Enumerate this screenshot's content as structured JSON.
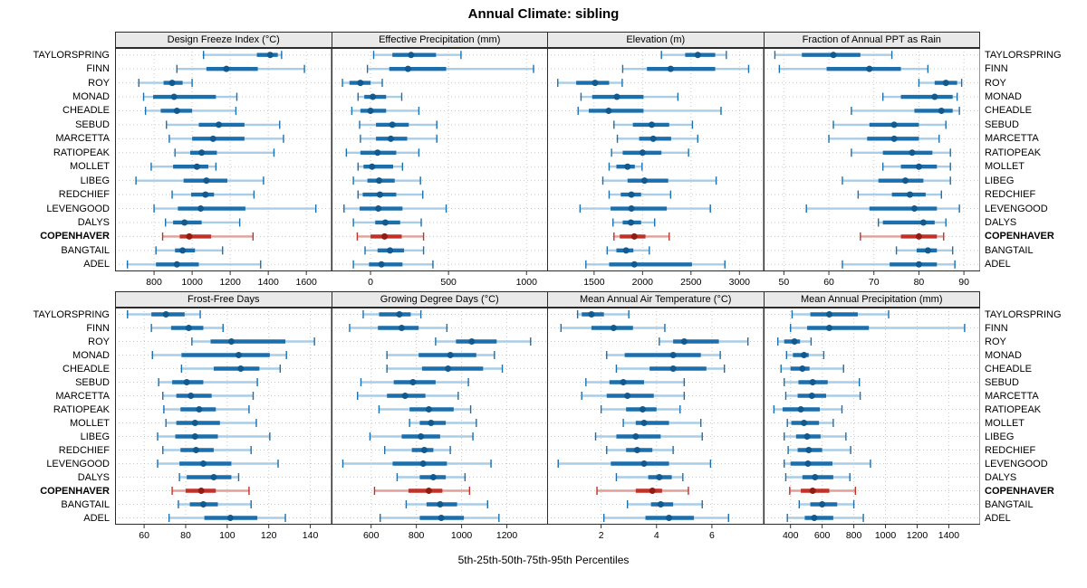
{
  "title": "Annual Climate: sibling",
  "caption": "5th-25th-50th-75th-95th Percentiles",
  "stations": [
    "TAYLORSPRING",
    "FINN",
    "ROY",
    "MONAD",
    "CHEADLE",
    "SEBUD",
    "MARCETTA",
    "RATIOPEAK",
    "MOLLET",
    "LIBEG",
    "REDCHIEF",
    "LEVENGOOD",
    "DALYS",
    "COPENHAVER",
    "BANGTAIL",
    "ADEL"
  ],
  "highlight_station": "COPENHAVER",
  "percentiles": [
    5,
    25,
    50,
    75,
    95
  ],
  "colors": {
    "series": "#1b6fad",
    "series_light": "#a9cde6",
    "series_dot": "#11598e",
    "highlight": "#c23128",
    "highlight_light": "#dfa09a",
    "highlight_dot": "#8f1d15",
    "grid": "#c8c8c8",
    "strip_bg": "#e9e9e9",
    "border": "#2b2b2b",
    "text": "#000000"
  },
  "chart_data": [
    {
      "type": "interval",
      "title": "Design Freeze Index (°C)",
      "xlim": [
        595,
        1730
      ],
      "ticks": [
        800,
        1000,
        1200,
        1400,
        1600
      ],
      "values": {
        "TAYLORSPRING": [
          1060,
          1340,
          1410,
          1450,
          1470
        ],
        "FINN": [
          920,
          1075,
          1180,
          1345,
          1590
        ],
        "ROY": [
          720,
          850,
          895,
          950,
          1000
        ],
        "MONAD": [
          745,
          795,
          905,
          1125,
          1235
        ],
        "CHEADLE": [
          755,
          835,
          920,
          1000,
          1230
        ],
        "SEBUD": [
          865,
          1035,
          1140,
          1275,
          1460
        ],
        "MARCETTA": [
          880,
          1000,
          1110,
          1275,
          1480
        ],
        "RATIOPEAK": [
          910,
          990,
          1050,
          1130,
          1430
        ],
        "MOLLET": [
          785,
          900,
          1025,
          1085,
          1125
        ],
        "LIBEG": [
          705,
          955,
          1075,
          1185,
          1375
        ],
        "REDCHIEF": [
          895,
          995,
          1070,
          1115,
          1325
        ],
        "LEVENGOOD": [
          800,
          925,
          1045,
          1280,
          1650
        ],
        "DALYS": [
          860,
          900,
          960,
          1050,
          1250
        ],
        "COPENHAVER": [
          845,
          935,
          985,
          1100,
          1320
        ],
        "BANGTAIL": [
          810,
          910,
          950,
          1015,
          1160
        ],
        "ADEL": [
          660,
          810,
          920,
          1035,
          1360
        ]
      }
    },
    {
      "type": "interval",
      "title": "Effective Precipitation (mm)",
      "xlim": [
        -250,
        1135
      ],
      "ticks": [
        0,
        500,
        1000
      ],
      "values": {
        "TAYLORSPRING": [
          20,
          140,
          260,
          420,
          580
        ],
        "FINN": [
          -20,
          120,
          240,
          485,
          1045
        ],
        "ROY": [
          -180,
          -135,
          -65,
          0,
          75
        ],
        "MONAD": [
          -80,
          -40,
          15,
          100,
          200
        ],
        "CHEADLE": [
          -120,
          -65,
          0,
          100,
          310
        ],
        "SEBUD": [
          -70,
          35,
          140,
          245,
          425
        ],
        "MARCETTA": [
          -65,
          35,
          130,
          235,
          425
        ],
        "RATIOPEAK": [
          -155,
          -65,
          45,
          165,
          310
        ],
        "MOLLET": [
          -80,
          -45,
          10,
          145,
          205
        ],
        "LIBEG": [
          -110,
          -20,
          55,
          155,
          320
        ],
        "REDCHIEF": [
          -80,
          -50,
          60,
          165,
          335
        ],
        "LEVENGOOD": [
          -170,
          -70,
          50,
          205,
          485
        ],
        "DALYS": [
          -110,
          30,
          95,
          190,
          325
        ],
        "COPENHAVER": [
          -85,
          0,
          90,
          200,
          340
        ],
        "BANGTAIL": [
          -35,
          45,
          125,
          215,
          340
        ],
        "ADEL": [
          -110,
          -10,
          70,
          205,
          400
        ]
      }
    },
    {
      "type": "interval",
      "title": "Elevation (m)",
      "xlim": [
        1015,
        3245
      ],
      "ticks": [
        1500,
        2000,
        2500,
        3000
      ],
      "values": {
        "TAYLORSPRING": [
          2195,
          2440,
          2570,
          2750,
          2865
        ],
        "FINN": [
          1795,
          2045,
          2290,
          2750,
          3095
        ],
        "ROY": [
          1125,
          1315,
          1510,
          1655,
          1790
        ],
        "MONAD": [
          1365,
          1480,
          1735,
          2010,
          2365
        ],
        "CHEADLE": [
          1335,
          1445,
          1650,
          2010,
          2810
        ],
        "SEBUD": [
          1705,
          1900,
          2095,
          2275,
          2515
        ],
        "MARCETTA": [
          1740,
          1965,
          2110,
          2295,
          2570
        ],
        "RATIOPEAK": [
          1680,
          1795,
          2000,
          2195,
          2475
        ],
        "MOLLET": [
          1655,
          1730,
          1845,
          1920,
          1995
        ],
        "LIBEG": [
          1590,
          1845,
          2020,
          2265,
          2760
        ],
        "REDCHIEF": [
          1655,
          1775,
          1885,
          1985,
          2290
        ],
        "LEVENGOOD": [
          1355,
          1670,
          1885,
          2250,
          2700
        ],
        "DALYS": [
          1695,
          1795,
          1880,
          1985,
          2125
        ],
        "COPENHAVER": [
          1705,
          1765,
          1915,
          2030,
          2275
        ],
        "BANGTAIL": [
          1635,
          1730,
          1830,
          1905,
          2070
        ],
        "ADEL": [
          1415,
          1655,
          1915,
          2510,
          2850
        ]
      }
    },
    {
      "type": "interval",
      "title": "Fraction of Annual PPT as Rain",
      "xlim": [
        45.5,
        93.5
      ],
      "ticks": [
        50,
        60,
        70,
        80,
        90
      ],
      "values": {
        "TAYLORSPRING": [
          48,
          54,
          61,
          67,
          74
        ],
        "FINN": [
          49,
          59.5,
          69,
          76,
          82
        ],
        "ROY": [
          80,
          83.5,
          86,
          88.5,
          89.5
        ],
        "MONAD": [
          72,
          76,
          83.5,
          87.5,
          88.5
        ],
        "CHEADLE": [
          65,
          79,
          85,
          87.5,
          89
        ],
        "SEBUD": [
          61,
          69,
          74.5,
          80,
          86
        ],
        "MARCETTA": [
          60,
          68.5,
          74.5,
          80,
          84.5
        ],
        "RATIOPEAK": [
          65,
          72,
          78.5,
          83,
          87
        ],
        "MOLLET": [
          72,
          76,
          80,
          84,
          87
        ],
        "LIBEG": [
          63,
          71,
          77,
          81,
          87
        ],
        "REDCHIEF": [
          66.5,
          74,
          78,
          81.5,
          85
        ],
        "LEVENGOOD": [
          55,
          69,
          79,
          84,
          89
        ],
        "DALYS": [
          71,
          72,
          81,
          83.5,
          86
        ],
        "COPENHAVER": [
          67,
          76,
          80,
          84,
          85.5
        ],
        "BANGTAIL": [
          75,
          79.5,
          82,
          84,
          87.5
        ],
        "ADEL": [
          63,
          73.5,
          80,
          84,
          88
        ]
      }
    },
    {
      "type": "interval",
      "title": "Frost-Free Days",
      "xlim": [
        46,
        150
      ],
      "ticks": [
        60,
        80,
        100,
        120,
        140
      ],
      "values": {
        "TAYLORSPRING": [
          52,
          63.5,
          70.5,
          79.5,
          87
        ],
        "FINN": [
          63.5,
          73,
          81.5,
          88.5,
          98
        ],
        "ROY": [
          83,
          92,
          102,
          128,
          142
        ],
        "MONAD": [
          64,
          78,
          105.5,
          120.5,
          128.5
        ],
        "CHEADLE": [
          78,
          93.5,
          106.5,
          115.5,
          125.5
        ],
        "SEBUD": [
          67,
          73.5,
          80.5,
          88.5,
          114.5
        ],
        "MARCETTA": [
          69,
          75.5,
          82.5,
          92.5,
          112.5
        ],
        "RATIOPEAK": [
          69.5,
          77.5,
          86.5,
          94.5,
          110.5
        ],
        "MOLLET": [
          70.5,
          75.5,
          84.5,
          96.5,
          114
        ],
        "LIBEG": [
          66.5,
          75,
          84.5,
          95.5,
          120.5
        ],
        "REDCHIEF": [
          69,
          77.5,
          85,
          93.5,
          111.5
        ],
        "LEVENGOOD": [
          66.5,
          77,
          88.5,
          102,
          124.5
        ],
        "DALYS": [
          77,
          80.5,
          93.5,
          102,
          105.5
        ],
        "COPENHAVER": [
          73.5,
          80,
          87.5,
          94.5,
          110.5
        ],
        "BANGTAIL": [
          76.5,
          82,
          88.5,
          95.5,
          111.5
        ],
        "ADEL": [
          72,
          89,
          101.5,
          114.5,
          128
        ]
      }
    },
    {
      "type": "interval",
      "title": "Growing Degree Days (°C)",
      "xlim": [
        425,
        1380
      ],
      "ticks": [
        600,
        800,
        1000,
        1200
      ],
      "values": {
        "TAYLORSPRING": [
          565,
          635,
          725,
          775,
          820
        ],
        "FINN": [
          505,
          630,
          735,
          810,
          935
        ],
        "ROY": [
          885,
          975,
          1045,
          1155,
          1305
        ],
        "MONAD": [
          670,
          810,
          950,
          1065,
          1145
        ],
        "CHEADLE": [
          670,
          825,
          940,
          1095,
          1180
        ],
        "SEBUD": [
          555,
          700,
          785,
          885,
          1030
        ],
        "MARCETTA": [
          540,
          670,
          750,
          840,
          985
        ],
        "RATIOPEAK": [
          635,
          770,
          855,
          965,
          1040
        ],
        "MOLLET": [
          770,
          815,
          865,
          930,
          1065
        ],
        "LIBEG": [
          595,
          735,
          820,
          905,
          1050
        ],
        "REDCHIEF": [
          660,
          780,
          835,
          875,
          950
        ],
        "LEVENGOOD": [
          475,
          695,
          830,
          935,
          1130
        ],
        "DALYS": [
          715,
          815,
          875,
          930,
          1015
        ],
        "COPENHAVER": [
          615,
          765,
          855,
          915,
          1035
        ],
        "BANGTAIL": [
          755,
          845,
          905,
          980,
          1115
        ],
        "ADEL": [
          640,
          815,
          910,
          1010,
          1165
        ]
      }
    },
    {
      "type": "interval",
      "title": "Mean Annual Air Temperature (°C)",
      "xlim": [
        0.05,
        7.85
      ],
      "ticks": [
        2,
        4,
        6
      ],
      "values": {
        "TAYLORSPRING": [
          1.15,
          1.3,
          1.65,
          2.1,
          3.0
        ],
        "FINN": [
          0.55,
          1.65,
          2.45,
          3.15,
          4.3
        ],
        "ROY": [
          4.1,
          4.6,
          5.0,
          6.25,
          7.3
        ],
        "MONAD": [
          2.2,
          2.85,
          4.6,
          5.6,
          6.3
        ],
        "CHEADLE": [
          2.55,
          3.75,
          4.6,
          5.8,
          6.45
        ],
        "SEBUD": [
          1.45,
          2.3,
          2.8,
          3.55,
          5.0
        ],
        "MARCETTA": [
          1.3,
          2.2,
          2.95,
          3.9,
          5.0
        ],
        "RATIOPEAK": [
          2.0,
          2.9,
          3.5,
          4.0,
          4.85
        ],
        "MOLLET": [
          2.8,
          3.25,
          3.55,
          4.45,
          5.6
        ],
        "LIBEG": [
          1.8,
          2.55,
          3.25,
          4.15,
          5.65
        ],
        "REDCHIEF": [
          2.2,
          2.9,
          3.3,
          3.85,
          4.6
        ],
        "LEVENGOOD": [
          0.45,
          2.35,
          3.55,
          4.45,
          5.95
        ],
        "DALYS": [
          2.55,
          3.7,
          4.1,
          4.55,
          4.95
        ],
        "COPENHAVER": [
          1.85,
          3.25,
          3.85,
          4.2,
          5.15
        ],
        "BANGTAIL": [
          2.95,
          3.8,
          4.15,
          4.6,
          5.65
        ],
        "ADEL": [
          2.1,
          3.6,
          4.45,
          5.35,
          6.6
        ]
      }
    },
    {
      "type": "interval",
      "title": "Mean Annual Precipitation (mm)",
      "xlim": [
        230,
        1595
      ],
      "ticks": [
        400,
        600,
        800,
        1000,
        1200,
        1400
      ],
      "values": {
        "TAYLORSPRING": [
          410,
          525,
          645,
          825,
          1020
        ],
        "FINN": [
          400,
          505,
          645,
          895,
          1500
        ],
        "ROY": [
          320,
          360,
          425,
          460,
          530
        ],
        "MONAD": [
          375,
          415,
          485,
          515,
          610
        ],
        "CHEADLE": [
          340,
          400,
          475,
          520,
          735
        ],
        "SEBUD": [
          360,
          450,
          540,
          635,
          835
        ],
        "MARCETTA": [
          370,
          445,
          535,
          625,
          840
        ],
        "RATIOPEAK": [
          295,
          350,
          465,
          585,
          725
        ],
        "MOLLET": [
          380,
          405,
          485,
          580,
          670
        ],
        "LIBEG": [
          360,
          435,
          505,
          590,
          750
        ],
        "REDCHIEF": [
          385,
          445,
          515,
          600,
          780
        ],
        "LEVENGOOD": [
          360,
          400,
          510,
          665,
          905
        ],
        "DALYS": [
          370,
          475,
          555,
          670,
          775
        ],
        "COPENHAVER": [
          395,
          465,
          540,
          645,
          810
        ],
        "BANGTAIL": [
          455,
          525,
          600,
          695,
          800
        ],
        "ADEL": [
          380,
          490,
          550,
          670,
          860
        ]
      }
    }
  ]
}
